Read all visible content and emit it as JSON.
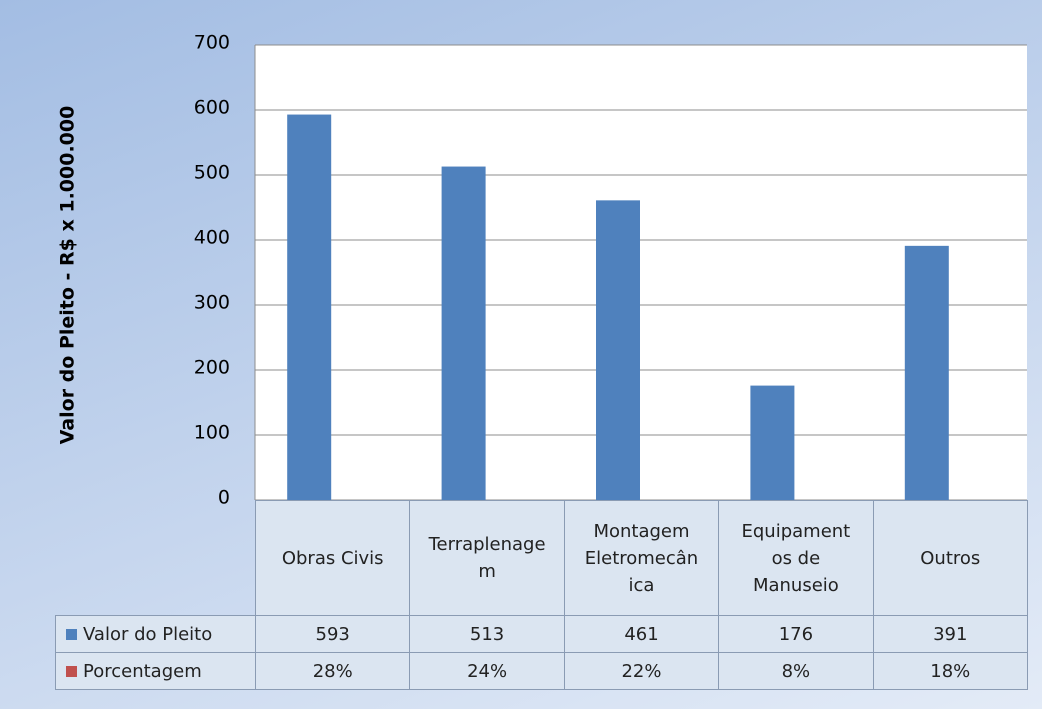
{
  "chart_data": {
    "type": "bar",
    "y_label": "Valor do Pleito - R$ x 1.000.000",
    "categories": [
      "Obras Civis",
      "Terraplenagem",
      "Montagem Eletromecânica",
      "Equipamentos de Manuseio",
      "Outros"
    ],
    "series": [
      {
        "name": "Valor do Pleito",
        "color": "#4f81bd",
        "values": [
          593,
          513,
          461,
          176,
          391
        ]
      },
      {
        "name": "Porcentagem",
        "color": "#c0504d",
        "values": [
          28,
          24,
          22,
          8,
          18
        ],
        "value_labels": [
          "28%",
          "24%",
          "22%",
          "8%",
          "18%"
        ]
      }
    ],
    "ylim": [
      0,
      700
    ],
    "yticks": [
      0,
      100,
      200,
      300,
      400,
      500,
      600,
      700
    ],
    "grid": true
  }
}
